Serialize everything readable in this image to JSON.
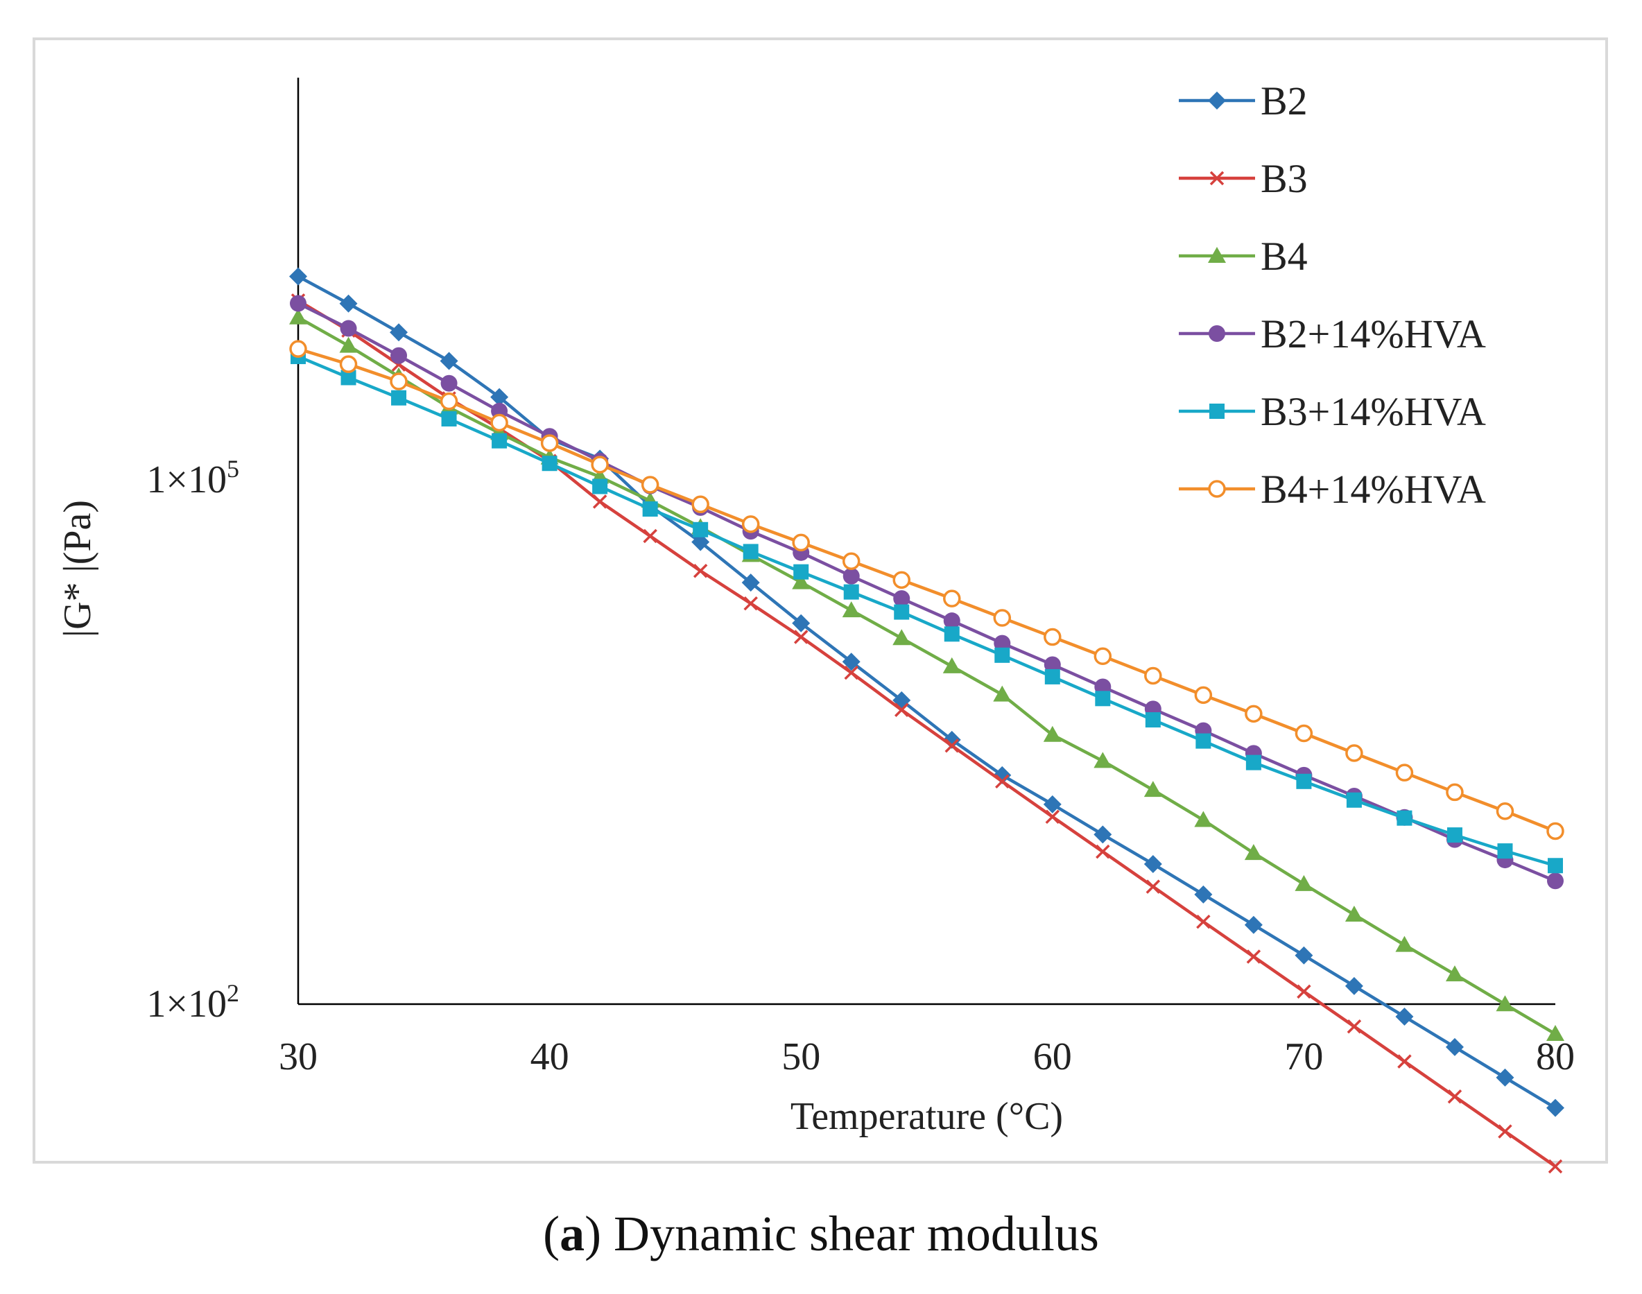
{
  "caption": {
    "open_paren": "(",
    "tag": "a",
    "text": ") Dynamic shear modulus"
  },
  "chart_data": {
    "type": "line",
    "title": "",
    "xlabel": "Temperature (°C)",
    "ylabel": "|G* |(Pa)",
    "yscale": "log",
    "xlim": [
      30,
      80
    ],
    "ylim_log10": [
      2,
      7.3
    ],
    "x_ticks": [
      "30",
      "40",
      "50",
      "60",
      "70",
      "80"
    ],
    "y_ticks": [
      {
        "value": 100000,
        "base": "1×10",
        "exp": "5"
      },
      {
        "value": 100,
        "base": "1×10",
        "exp": "2"
      }
    ],
    "legend_position": "top-right",
    "x": [
      30,
      32,
      34,
      36,
      38,
      40,
      42,
      44,
      46,
      48,
      50,
      52,
      54,
      56,
      58,
      60,
      62,
      64,
      66,
      68,
      70,
      72,
      74,
      76,
      78,
      80
    ],
    "series": [
      {
        "name": "B2",
        "color": "#2e75b6",
        "marker": "diamond",
        "values": [
          1455000,
          1018000,
          697000,
          478000,
          297000,
          171000,
          132000,
          70900,
          44000,
          25800,
          15100,
          9090,
          5470,
          3250,
          2040,
          1390,
          934,
          633,
          424,
          284,
          190,
          127,
          84.8,
          56.8,
          38.0,
          25.5
        ]
      },
      {
        "name": "B3",
        "color": "#d6413d",
        "marker": "x",
        "values": [
          1060000,
          713000,
          456000,
          292000,
          196000,
          128000,
          74900,
          47600,
          30100,
          19600,
          12600,
          7870,
          4820,
          3010,
          1880,
          1180,
          745,
          470,
          296,
          187,
          118,
          74.5,
          47,
          29.6,
          18.7,
          11.8
        ]
      },
      {
        "name": "B4",
        "color": "#70ad47",
        "marker": "triangle",
        "values": [
          848000,
          584000,
          390000,
          259000,
          185000,
          134000,
          104000,
          75800,
          53500,
          37100,
          25900,
          17900,
          12400,
          8560,
          5900,
          3470,
          2460,
          1680,
          1130,
          732,
          486,
          325,
          218,
          148,
          99.8,
          67.5
        ]
      },
      {
        "name": "B2+14%HVA",
        "color": "#7b4fa1",
        "marker": "circle",
        "values": [
          1020000,
          734000,
          513000,
          356000,
          247000,
          177000,
          128000,
          92100,
          69300,
          50700,
          38300,
          28100,
          20900,
          15600,
          11600,
          8750,
          6530,
          4880,
          3670,
          2720,
          2040,
          1550,
          1170,
          874,
          668,
          507
        ]
      },
      {
        "name": "B3+14%HVA",
        "color": "#18a8c8",
        "marker": "square",
        "values": [
          507000,
          384000,
          294000,
          223000,
          167000,
          124000,
          91500,
          68000,
          51800,
          38800,
          29700,
          22800,
          17500,
          13100,
          9910,
          7460,
          5600,
          4230,
          3200,
          2410,
          1880,
          1470,
          1160,
          928,
          752,
          620
        ]
      },
      {
        "name": "B4+14%HVA",
        "color": "#f28e2b",
        "marker": "open-circle",
        "values": [
          560000,
          458000,
          365000,
          281000,
          212000,
          162000,
          122000,
          93600,
          72300,
          55700,
          43700,
          34200,
          26700,
          20900,
          16200,
          12600,
          9780,
          7560,
          5860,
          4580,
          3540,
          2730,
          2110,
          1630,
          1270,
          977
        ]
      }
    ]
  }
}
